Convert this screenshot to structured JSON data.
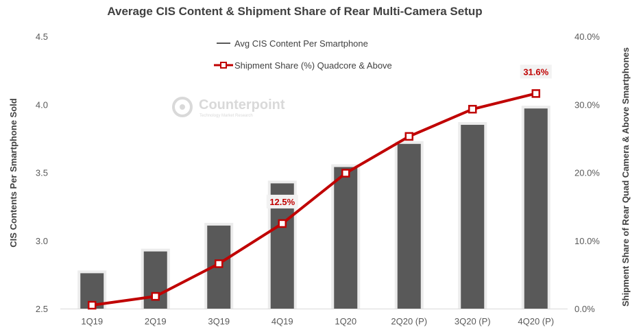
{
  "chart_data": {
    "type": "bar+line",
    "title": "Average CIS Content & Shipment Share of Rear Multi-Camera Setup",
    "categories": [
      "1Q19",
      "2Q19",
      "3Q19",
      "4Q19",
      "1Q20",
      "2Q20 (P)",
      "3Q20 (P)",
      "4Q20 (P)"
    ],
    "series": [
      {
        "name": "Avg CIS Content Per Smartphone",
        "type": "bar",
        "axis": "left",
        "color": "#595959",
        "values": [
          2.76,
          2.92,
          3.11,
          3.42,
          3.54,
          3.71,
          3.85,
          3.97
        ]
      },
      {
        "name": "Shipment Share (%) Quadcore & Above",
        "type": "line",
        "axis": "right",
        "color": "#c00000",
        "values": [
          0.5,
          1.8,
          6.6,
          12.5,
          19.9,
          25.3,
          29.3,
          31.6
        ]
      }
    ],
    "left_axis": {
      "label": "CIS Contents Per Smartphone Sold",
      "ylim": [
        2.5,
        4.5
      ],
      "ticks": [
        2.5,
        3.0,
        3.5,
        4.0,
        4.5
      ],
      "tick_labels": [
        "2.5",
        "3.0",
        "3.5",
        "4.0",
        "4.5"
      ]
    },
    "right_axis": {
      "label": "Shipment Share of Rear Quad Camera  & Above Smartphones",
      "ylim": [
        0,
        40
      ],
      "ticks": [
        0,
        10,
        20,
        30,
        40
      ],
      "tick_labels": [
        "0.0%",
        "10.0%",
        "20.0%",
        "30.0%",
        "40.0%"
      ]
    },
    "annotations": [
      {
        "series": 1,
        "index": 3,
        "text": "12.5%"
      },
      {
        "series": 1,
        "index": 7,
        "text": "31.6%"
      }
    ],
    "grid": false,
    "legend_position": "top-center"
  },
  "watermark": {
    "name": "Counterpoint",
    "tagline": "Technology Market Research"
  }
}
